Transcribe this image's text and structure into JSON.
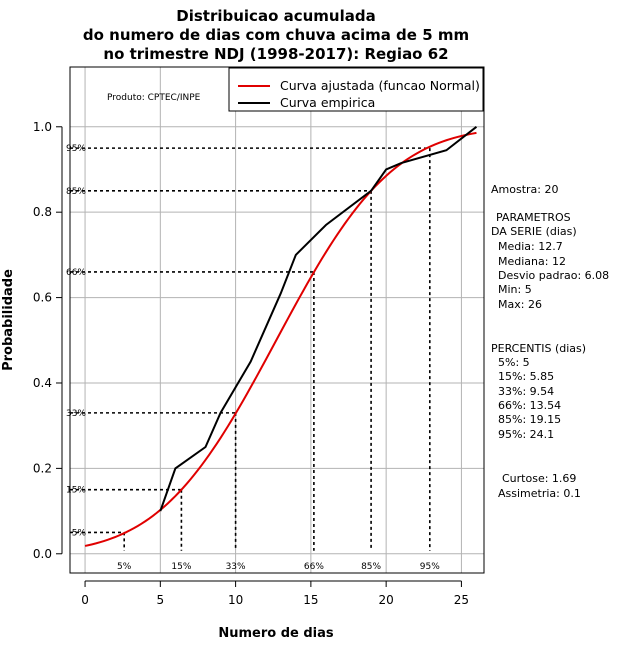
{
  "chart_data": {
    "type": "line",
    "title_lines": [
      "Distribuicao acumulada",
      "do numero de dias com chuva acima de 5 mm",
      "no trimestre NDJ (1998-2017): Regiao 62"
    ],
    "xlabel": "Numero de dias",
    "ylabel": "Probabilidade",
    "xlim": [
      -1,
      26.5
    ],
    "ylim": [
      -0.045,
      1.14
    ],
    "x_ticks": [
      0,
      5,
      10,
      15,
      20,
      25
    ],
    "y_ticks": [
      0.0,
      0.2,
      0.4,
      0.6,
      0.8,
      1.0
    ],
    "x_tick_labels": [
      "0",
      "5",
      "10",
      "15",
      "20",
      "25"
    ],
    "y_tick_labels": [
      "0.0",
      "0.2",
      "0.4",
      "0.6",
      "0.8",
      "1.0"
    ],
    "grid": true,
    "product_label": "Produto: CPTEC/INPE",
    "legend": {
      "position": "top-right",
      "entries": [
        {
          "name": "Curva ajustada (funcao Normal)",
          "color": "#e00000"
        },
        {
          "name": "Curva empirica",
          "color": "#000000"
        }
      ]
    },
    "fitted_normal": {
      "name": "Curva ajustada (funcao Normal)",
      "mean": 12.7,
      "sd": 6.08,
      "x_range": [
        0,
        26
      ],
      "color": "#e00000"
    },
    "series": [
      {
        "name": "Curva empirica",
        "color": "#000000",
        "x": [
          5,
          6,
          8,
          9,
          11,
          13,
          14,
          16,
          19,
          20,
          21,
          24,
          26
        ],
        "y": [
          0.1,
          0.2,
          0.25,
          0.33,
          0.45,
          0.61,
          0.7,
          0.77,
          0.85,
          0.9,
          0.915,
          0.945,
          1.0
        ]
      }
    ],
    "percentile_lines": [
      {
        "label": "5%",
        "p": 0.05,
        "x": 2.6
      },
      {
        "label": "15%",
        "p": 0.15,
        "x": 6.4
      },
      {
        "label": "33%",
        "p": 0.33,
        "x": 10.0
      },
      {
        "label": "66%",
        "p": 0.66,
        "x": 15.2
      },
      {
        "label": "85%",
        "p": 0.85,
        "x": 19.0
      },
      {
        "label": "95%",
        "p": 0.95,
        "x": 22.9
      }
    ]
  },
  "side_panel": {
    "sample": "Amostra: 20",
    "params_header_1": "PARAMETROS",
    "params_header_2": "DA SERIE (dias)",
    "media": "Media: 12.7",
    "mediana": "Mediana: 12",
    "desvio": "Desvio padrao: 6.08",
    "min": "Min: 5",
    "max": "Max: 26",
    "percentis_header": "PERCENTIS (dias)",
    "p5": "5%: 5",
    "p15": "15%: 5.85",
    "p33": "33%: 9.54",
    "p66": "66%: 13.54",
    "p85": "85%: 19.15",
    "p95": "95%: 24.1",
    "curtose": "Curtose: 1.69",
    "assimetria": "Assimetria: 0.1"
  }
}
